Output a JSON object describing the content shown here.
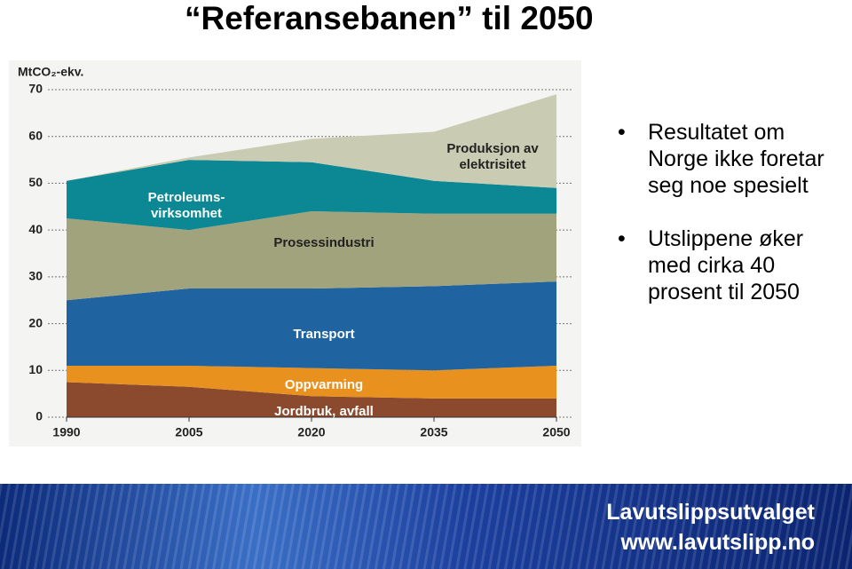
{
  "title": "“Referansebanen” til 2050",
  "bullets": [
    "Resultatet om Norge ikke foretar seg noe spesielt",
    "Utslippene øker med cirka 40 prosent til 2050"
  ],
  "footer": {
    "name": "Lavutslippsutvalget",
    "url": "www.lavutslipp.no"
  },
  "chart_data": {
    "type": "stacked-area",
    "y_label": "MtCO₂-ekv.",
    "x": [
      1990,
      2005,
      2020,
      2035,
      2050
    ],
    "xlim": [
      1990,
      2050
    ],
    "xticks": [
      1990,
      2005,
      2020,
      2035,
      2050
    ],
    "ylim": [
      0,
      70
    ],
    "yticks": [
      0,
      10,
      20,
      30,
      40,
      50,
      60,
      70
    ],
    "grid": true,
    "series": [
      {
        "name": "Jordbruk, avfall",
        "color": "#8b4a2e",
        "values": [
          7.5,
          6.5,
          4.5,
          4,
          4
        ]
      },
      {
        "name": "Oppvarming",
        "color": "#e8911e",
        "values": [
          3.5,
          4.5,
          6,
          6,
          7
        ]
      },
      {
        "name": "Transport",
        "color": "#1f64a0",
        "values": [
          14,
          16.5,
          17,
          18,
          18
        ]
      },
      {
        "name": "Prosessindustri",
        "color": "#a1a37c",
        "values": [
          17.5,
          12.5,
          16.5,
          15.5,
          14.5
        ]
      },
      {
        "name": "Petroleums- virksomhet",
        "color": "#0b8894",
        "values": [
          8,
          15,
          10.5,
          7,
          5.5
        ]
      },
      {
        "name": "Produksjon av elektrisitet",
        "color": "#c9cbb2",
        "values": [
          0,
          0.5,
          5,
          10.5,
          20
        ]
      }
    ]
  }
}
